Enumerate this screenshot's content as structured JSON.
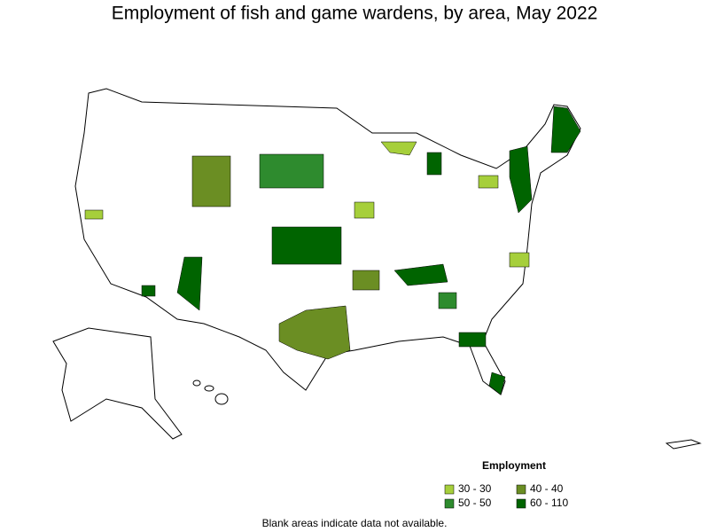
{
  "title": "Employment of fish and game wardens, by area, May 2022",
  "legend": {
    "title": "Employment",
    "items": [
      {
        "label": "30 - 30",
        "color": "#a6cf3b"
      },
      {
        "label": "50 - 50",
        "color": "#2e8b2e"
      },
      {
        "label": "40 - 40",
        "color": "#6b8e23"
      },
      {
        "label": "60 - 110",
        "color": "#006400"
      }
    ]
  },
  "footnote": "Blank areas indicate data not available."
}
